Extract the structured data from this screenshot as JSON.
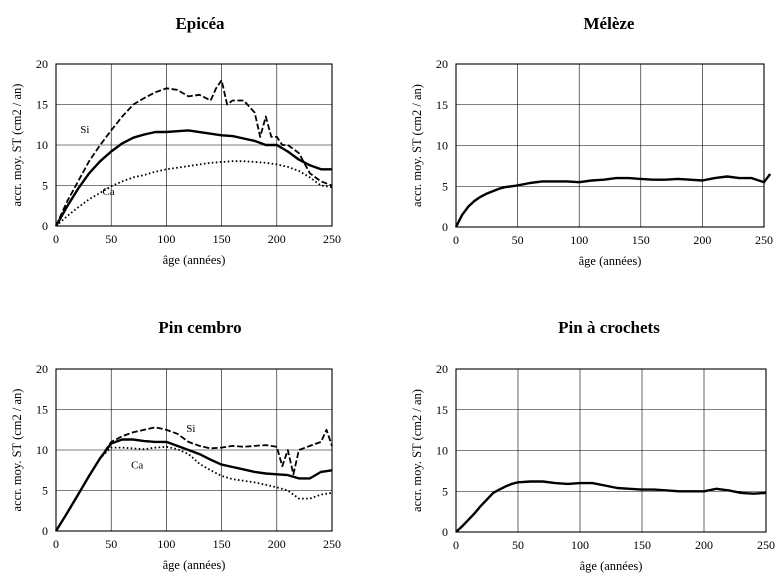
{
  "chart_data": [
    {
      "type": "line",
      "title": "Epicéa",
      "xlabel": "âge (années)",
      "ylabel": "accr. moy. ST (cm2 / an)",
      "xlim": [
        0,
        250
      ],
      "ylim": [
        0,
        20
      ],
      "xticks": [
        0,
        50,
        100,
        150,
        200,
        250
      ],
      "yticks": [
        0,
        5,
        10,
        15,
        20
      ],
      "grid": true,
      "legend": "none",
      "annotations": [
        {
          "text": "Si",
          "x": 22,
          "y": 11.5
        },
        {
          "text": "Ca",
          "x": 42,
          "y": 3.8
        }
      ],
      "series": [
        {
          "style": "dashed",
          "x": [
            0,
            10,
            20,
            30,
            40,
            50,
            60,
            70,
            80,
            90,
            100,
            110,
            120,
            130,
            140,
            145,
            150,
            155,
            160,
            170,
            180,
            185,
            190,
            195,
            200,
            205,
            210,
            220,
            230,
            240,
            250
          ],
          "y": [
            0,
            3,
            5.5,
            8,
            10,
            11.8,
            13.5,
            15,
            15.8,
            16.5,
            17,
            16.8,
            16,
            16.2,
            15.5,
            17,
            18,
            15,
            15.5,
            15.5,
            14,
            11,
            13.5,
            11,
            11,
            10,
            10,
            9,
            6.5,
            5.5,
            5
          ]
        },
        {
          "style": "solid",
          "x": [
            0,
            10,
            20,
            30,
            40,
            50,
            60,
            70,
            80,
            90,
            100,
            110,
            120,
            130,
            140,
            150,
            160,
            170,
            180,
            190,
            200,
            210,
            220,
            230,
            240,
            250
          ],
          "y": [
            0,
            2.4,
            4.6,
            6.5,
            8,
            9.2,
            10.2,
            10.9,
            11.3,
            11.6,
            11.6,
            11.7,
            11.8,
            11.6,
            11.4,
            11.2,
            11.1,
            10.8,
            10.5,
            10,
            10,
            9.2,
            8.2,
            7.5,
            7,
            7
          ]
        },
        {
          "style": "dotted",
          "x": [
            0,
            10,
            20,
            30,
            40,
            50,
            60,
            70,
            80,
            90,
            100,
            110,
            120,
            130,
            140,
            150,
            160,
            170,
            180,
            190,
            200,
            210,
            220,
            230,
            240,
            250
          ],
          "y": [
            0,
            1.2,
            2.3,
            3.3,
            4.1,
            4.9,
            5.5,
            6,
            6.3,
            6.7,
            7,
            7.2,
            7.4,
            7.6,
            7.8,
            7.9,
            8,
            8,
            7.9,
            7.8,
            7.6,
            7.3,
            6.8,
            6,
            5,
            4.8
          ]
        }
      ]
    },
    {
      "type": "line",
      "title": "Mélèze",
      "xlabel": "âge (années)",
      "ylabel": "accr. moy. ST (cm2 / an)",
      "xlim": [
        0,
        250
      ],
      "ylim": [
        0,
        20
      ],
      "xticks": [
        0,
        50,
        100,
        150,
        200,
        250
      ],
      "yticks": [
        0,
        5,
        10,
        15,
        20
      ],
      "grid": true,
      "legend": "none",
      "annotations": [],
      "series": [
        {
          "style": "solid",
          "x": [
            0,
            5,
            10,
            15,
            20,
            25,
            30,
            35,
            40,
            45,
            50,
            60,
            70,
            80,
            90,
            100,
            110,
            120,
            130,
            140,
            150,
            160,
            170,
            180,
            190,
            200,
            210,
            220,
            230,
            240,
            250,
            255
          ],
          "y": [
            0,
            1.5,
            2.5,
            3.2,
            3.7,
            4.1,
            4.4,
            4.7,
            4.9,
            5,
            5.1,
            5.4,
            5.6,
            5.6,
            5.6,
            5.5,
            5.7,
            5.8,
            6,
            6,
            5.9,
            5.8,
            5.8,
            5.9,
            5.8,
            5.7,
            6,
            6.2,
            6,
            6,
            5.5,
            6.5
          ]
        }
      ]
    },
    {
      "type": "line",
      "title": "Pin cembro",
      "xlabel": "âge (années)",
      "ylabel": "accr. moy. ST (cm2 / an)",
      "xlim": [
        0,
        250
      ],
      "ylim": [
        0,
        20
      ],
      "xticks": [
        0,
        50,
        100,
        150,
        200,
        250
      ],
      "yticks": [
        0,
        5,
        10,
        15,
        20
      ],
      "grid": true,
      "legend": "none",
      "annotations": [
        {
          "text": "Si",
          "x": 118,
          "y": 12.2
        },
        {
          "text": "Ca",
          "x": 68,
          "y": 7.7
        }
      ],
      "series": [
        {
          "style": "dashed",
          "x": [
            0,
            10,
            20,
            30,
            40,
            50,
            60,
            70,
            80,
            90,
            100,
            110,
            120,
            130,
            140,
            150,
            160,
            170,
            180,
            190,
            200,
            205,
            210,
            215,
            220,
            230,
            240,
            245,
            250
          ],
          "y": [
            0,
            2.2,
            4.5,
            6.8,
            9,
            11,
            11.7,
            12.2,
            12.5,
            12.8,
            12.5,
            12,
            11,
            10.5,
            10.2,
            10.3,
            10.5,
            10.4,
            10.5,
            10.6,
            10.4,
            8,
            10,
            7,
            10,
            10.5,
            11,
            12.5,
            10.5
          ]
        },
        {
          "style": "solid",
          "x": [
            0,
            10,
            20,
            30,
            40,
            50,
            60,
            70,
            80,
            90,
            100,
            110,
            120,
            130,
            140,
            150,
            160,
            170,
            180,
            190,
            200,
            210,
            220,
            230,
            240,
            250
          ],
          "y": [
            0,
            2.2,
            4.5,
            6.8,
            9,
            10.8,
            11.3,
            11.3,
            11.1,
            11,
            11,
            10.5,
            10,
            9.5,
            8.8,
            8.2,
            7.9,
            7.6,
            7.3,
            7.1,
            7,
            6.9,
            6.5,
            6.5,
            7.3,
            7.5
          ]
        },
        {
          "style": "dotted",
          "x": [
            0,
            10,
            20,
            30,
            40,
            50,
            60,
            70,
            80,
            90,
            100,
            110,
            120,
            130,
            140,
            150,
            160,
            170,
            180,
            190,
            200,
            210,
            220,
            230,
            240,
            250
          ],
          "y": [
            0,
            2.2,
            4.5,
            6.8,
            9,
            10.3,
            10.3,
            10.2,
            10.1,
            10.3,
            10.4,
            10.1,
            9.5,
            8.3,
            7.5,
            6.8,
            6.4,
            6.2,
            6,
            5.7,
            5.4,
            5,
            4,
            4,
            4.5,
            4.7
          ]
        }
      ]
    },
    {
      "type": "line",
      "title": "Pin à crochets",
      "xlabel": "âge (années)",
      "ylabel": "accr. moy. ST (cm2 / an)",
      "xlim": [
        0,
        250
      ],
      "ylim": [
        0,
        20
      ],
      "xticks": [
        0,
        50,
        100,
        150,
        200,
        250
      ],
      "yticks": [
        0,
        5,
        10,
        15,
        20
      ],
      "grid": true,
      "legend": "none",
      "annotations": [],
      "series": [
        {
          "style": "solid",
          "x": [
            0,
            5,
            10,
            15,
            20,
            25,
            30,
            35,
            40,
            45,
            50,
            60,
            70,
            80,
            90,
            100,
            110,
            120,
            130,
            140,
            150,
            160,
            170,
            180,
            190,
            200,
            210,
            220,
            230,
            240,
            250
          ],
          "y": [
            0,
            0.7,
            1.5,
            2.3,
            3.2,
            4,
            4.8,
            5.2,
            5.6,
            5.9,
            6.1,
            6.2,
            6.2,
            6,
            5.9,
            6,
            6,
            5.7,
            5.4,
            5.3,
            5.2,
            5.2,
            5.1,
            5,
            5,
            5,
            5.3,
            5.1,
            4.8,
            4.7,
            4.8
          ]
        }
      ]
    }
  ]
}
